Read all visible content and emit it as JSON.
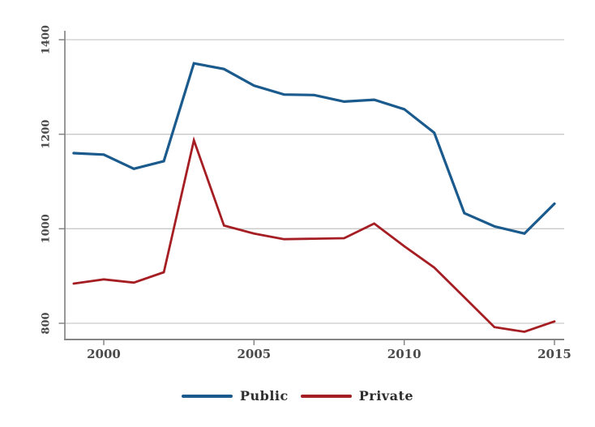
{
  "chart_data": {
    "type": "line",
    "title": "",
    "xlabel": "",
    "ylabel": "",
    "x": [
      1999,
      2000,
      2001,
      2002,
      2003,
      2004,
      2005,
      2006,
      2007,
      2008,
      2009,
      2010,
      2011,
      2012,
      2013,
      2014,
      2015
    ],
    "series": [
      {
        "name": "Public",
        "color": "#1a5a8c",
        "values": [
          1160,
          1157,
          1127,
          1143,
          1350,
          1338,
          1303,
          1284,
          1283,
          1269,
          1273,
          1253,
          1203,
          1033,
          1005,
          990,
          1053
        ]
      },
      {
        "name": "Private",
        "color": "#a51e23",
        "values": [
          884,
          893,
          886,
          908,
          1187,
          1007,
          990,
          978,
          979,
          980,
          1011,
          963,
          918,
          855,
          792,
          782,
          804
        ]
      }
    ],
    "x_ticks": [
      2000,
      2005,
      2010,
      2015
    ],
    "y_ticks": [
      800,
      1000,
      1200,
      1400
    ],
    "xlim": [
      1998.7,
      2015.3
    ],
    "ylim": [
      766,
      1419
    ],
    "grid": "horizontal-only",
    "grid_color": "#c9c9c9",
    "axis_color": "#858585",
    "tick_label_color": "#4a4a4a",
    "legend_position": "bottom-center",
    "y_tick_rotation": -90
  }
}
